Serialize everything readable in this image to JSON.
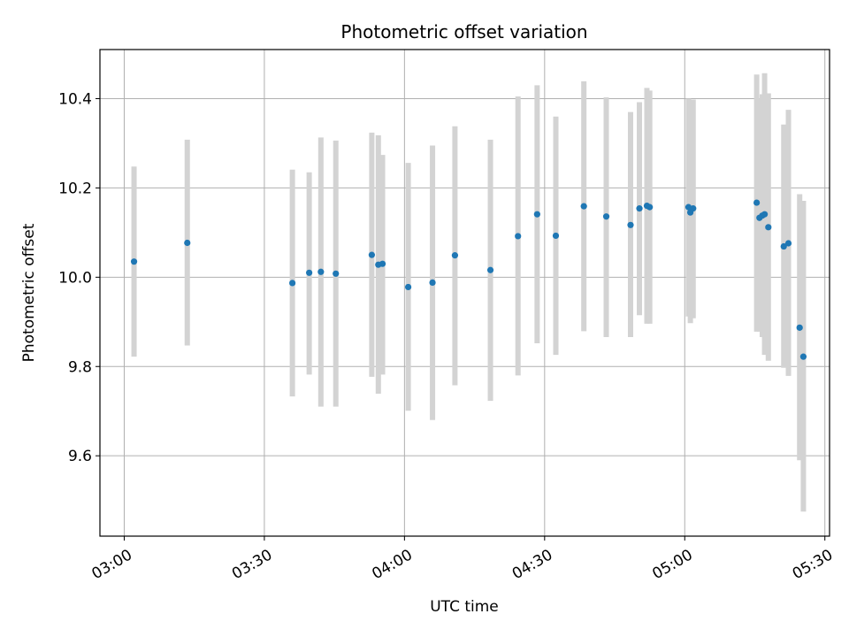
{
  "chart_data": {
    "type": "scatter",
    "title": "Photometric offset variation",
    "xlabel": "UTC time",
    "ylabel": "Photometric offset",
    "x_ticks": [
      "03:00",
      "03:30",
      "04:00",
      "04:30",
      "05:00",
      "05:30"
    ],
    "y_ticks": [
      "9.6",
      "9.8",
      "10.0",
      "10.2",
      "10.4"
    ],
    "xlim": [
      "02:54.8",
      "05:31.0"
    ],
    "ylim": [
      9.42,
      10.51
    ],
    "grid": true,
    "colors": {
      "point": "#1f77b4",
      "errorbar": "#d3d3d3",
      "grid": "#b0b0b0"
    },
    "series": [
      {
        "points": [
          {
            "x": "03:02.1",
            "y": 10.035,
            "ylow": 9.822,
            "yhigh": 10.248
          },
          {
            "x": "03:13.5",
            "y": 10.077,
            "ylow": 9.847,
            "yhigh": 10.308
          },
          {
            "x": "03:36.0",
            "y": 9.987,
            "ylow": 9.733,
            "yhigh": 10.241
          },
          {
            "x": "03:39.6",
            "y": 10.01,
            "ylow": 9.782,
            "yhigh": 10.235
          },
          {
            "x": "03:42.1",
            "y": 10.012,
            "ylow": 9.71,
            "yhigh": 10.313
          },
          {
            "x": "03:45.3",
            "y": 10.008,
            "ylow": 9.71,
            "yhigh": 10.306
          },
          {
            "x": "03:53.0",
            "y": 10.05,
            "ylow": 9.777,
            "yhigh": 10.324
          },
          {
            "x": "03:54.4",
            "y": 10.028,
            "ylow": 9.739,
            "yhigh": 10.318
          },
          {
            "x": "03:55.3",
            "y": 10.03,
            "ylow": 9.782,
            "yhigh": 10.274
          },
          {
            "x": "04:00.8",
            "y": 9.978,
            "ylow": 9.701,
            "yhigh": 10.256
          },
          {
            "x": "04:06.0",
            "y": 9.988,
            "ylow": 9.68,
            "yhigh": 10.295
          },
          {
            "x": "04:10.8",
            "y": 10.049,
            "ylow": 9.758,
            "yhigh": 10.338
          },
          {
            "x": "04:18.4",
            "y": 10.016,
            "ylow": 9.723,
            "yhigh": 10.308
          },
          {
            "x": "04:24.3",
            "y": 10.092,
            "ylow": 9.78,
            "yhigh": 10.405
          },
          {
            "x": "04:28.4",
            "y": 10.141,
            "ylow": 9.852,
            "yhigh": 10.43
          },
          {
            "x": "04:32.4",
            "y": 10.093,
            "ylow": 9.826,
            "yhigh": 10.36
          },
          {
            "x": "04:38.4",
            "y": 10.159,
            "ylow": 9.879,
            "yhigh": 10.439
          },
          {
            "x": "04:43.2",
            "y": 10.136,
            "ylow": 9.866,
            "yhigh": 10.403
          },
          {
            "x": "04:48.4",
            "y": 10.117,
            "ylow": 9.866,
            "yhigh": 10.37
          },
          {
            "x": "04:50.3",
            "y": 10.154,
            "ylow": 9.915,
            "yhigh": 10.392
          },
          {
            "x": "04:51.9",
            "y": 10.16,
            "ylow": 9.896,
            "yhigh": 10.424
          },
          {
            "x": "04:52.5",
            "y": 10.157,
            "ylow": 9.896,
            "yhigh": 10.418
          },
          {
            "x": "05:00.8",
            "y": 10.157,
            "ylow": 9.912,
            "yhigh": 10.4
          },
          {
            "x": "05:01.2",
            "y": 10.145,
            "ylow": 9.897,
            "yhigh": 10.39
          },
          {
            "x": "05:01.8",
            "y": 10.154,
            "ylow": 9.908,
            "yhigh": 10.398
          },
          {
            "x": "05:15.4",
            "y": 10.167,
            "ylow": 9.878,
            "yhigh": 10.454
          },
          {
            "x": "05:16.0",
            "y": 10.133,
            "ylow": 9.878,
            "yhigh": 10.4
          },
          {
            "x": "05:16.6",
            "y": 10.138,
            "ylow": 9.866,
            "yhigh": 10.41
          },
          {
            "x": "05:17.1",
            "y": 10.141,
            "ylow": 9.826,
            "yhigh": 10.457
          },
          {
            "x": "05:17.9",
            "y": 10.112,
            "ylow": 9.813,
            "yhigh": 10.412
          },
          {
            "x": "05:21.2",
            "y": 10.069,
            "ylow": 9.797,
            "yhigh": 10.342
          },
          {
            "x": "05:22.2",
            "y": 10.076,
            "ylow": 9.779,
            "yhigh": 10.375
          },
          {
            "x": "05:24.6",
            "y": 9.887,
            "ylow": 9.59,
            "yhigh": 10.186
          },
          {
            "x": "05:25.4",
            "y": 9.822,
            "ylow": 9.475,
            "yhigh": 10.171
          }
        ]
      }
    ]
  }
}
